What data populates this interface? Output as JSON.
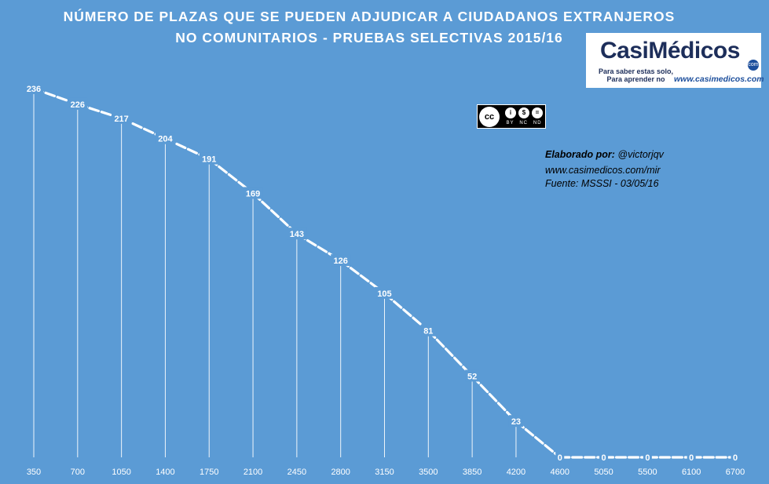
{
  "title_line1": "NÚMERO DE PLAZAS QUE SE PUEDEN ADJUDICAR A CIUDADANOS EXTRANJEROS",
  "title_line2": "NO COMUNITARIOS  - PRUEBAS SELECTIVAS 2015/16",
  "logo": {
    "name": "CasiMédicos",
    "com": "com",
    "tagline1": "Para saber estas solo,",
    "tagline2": "Para aprender no",
    "url": "www.casimedicos.com"
  },
  "license": {
    "badge": "cc",
    "labels": [
      "BY",
      "NC",
      "ND"
    ]
  },
  "credits": {
    "elaborado_label": "Elaborado por:",
    "author": "@victorjqv",
    "site": "www.casimedicos.com/mir",
    "source": "Fuente: MSSSI - 03/05/16"
  },
  "colors": {
    "background": "#5b9bd5",
    "line": "#ffffff",
    "text": "#ffffff"
  },
  "chart_data": {
    "type": "line",
    "title": "NÚMERO DE PLAZAS QUE SE PUEDEN ADJUDICAR A CIUDADANOS EXTRANJEROS NO COMUNITARIOS  - PRUEBAS SELECTIVAS 2015/16",
    "categories": [
      "350",
      "700",
      "1050",
      "1400",
      "1750",
      "2100",
      "2450",
      "2800",
      "3150",
      "3500",
      "3850",
      "4200",
      "4600",
      "5050",
      "5500",
      "6100",
      "6700"
    ],
    "values": [
      236,
      226,
      217,
      204,
      191,
      169,
      143,
      126,
      105,
      81,
      52,
      23,
      0,
      0,
      0,
      0,
      0
    ],
    "style": "dashed",
    "drop_lines": true,
    "data_labels": true,
    "grid": false,
    "ylim": [
      0,
      236
    ]
  }
}
